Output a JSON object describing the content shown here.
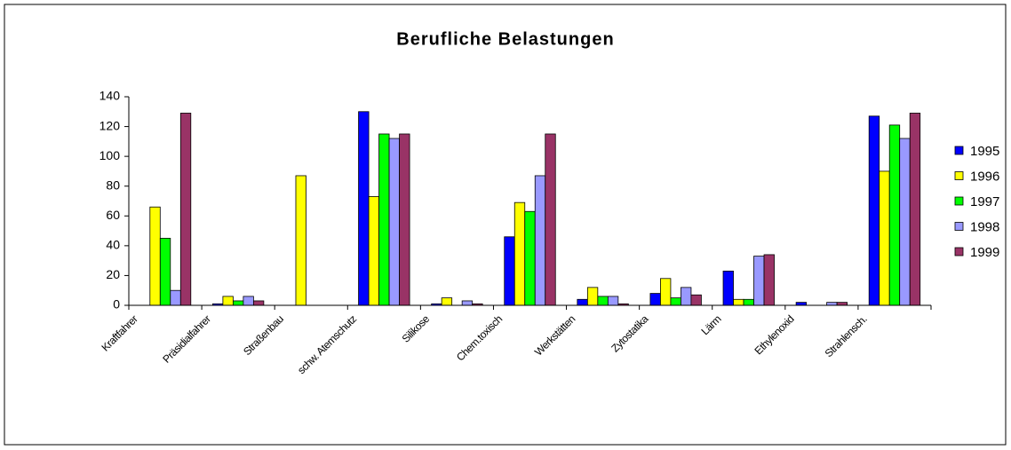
{
  "chart_data": {
    "type": "bar",
    "title": "Berufliche Belastungen",
    "categories": [
      "Kraftfahrer",
      "Präsidialfahrer",
      "Straßenbau",
      "schw. Atemschutz",
      "Silikose",
      "Chem.toxisch",
      "Werkstätten",
      "Zytostatika",
      "Lärm",
      "Ethylenoxid",
      "Strahlensch."
    ],
    "series": [
      {
        "name": "1995",
        "color": "#0000ff",
        "values": [
          0,
          1,
          0,
          130,
          1,
          46,
          4,
          8,
          23,
          2,
          127
        ]
      },
      {
        "name": "1996",
        "color": "#ffff00",
        "values": [
          66,
          6,
          87,
          73,
          5,
          69,
          12,
          18,
          4,
          0,
          90
        ]
      },
      {
        "name": "1997",
        "color": "#00ff00",
        "values": [
          45,
          3,
          0,
          115,
          0,
          63,
          6,
          5,
          4,
          0,
          121
        ]
      },
      {
        "name": "1998",
        "color": "#9999ff",
        "values": [
          10,
          6,
          0,
          112,
          3,
          87,
          6,
          12,
          33,
          2,
          112
        ]
      },
      {
        "name": "1999",
        "color": "#993366",
        "values": [
          129,
          3,
          0,
          115,
          1,
          115,
          1,
          7,
          34,
          2,
          129
        ]
      }
    ],
    "ylim": [
      0,
      140
    ],
    "yticks": [
      0,
      20,
      40,
      60,
      80,
      100,
      120,
      140
    ],
    "legend": "right"
  }
}
